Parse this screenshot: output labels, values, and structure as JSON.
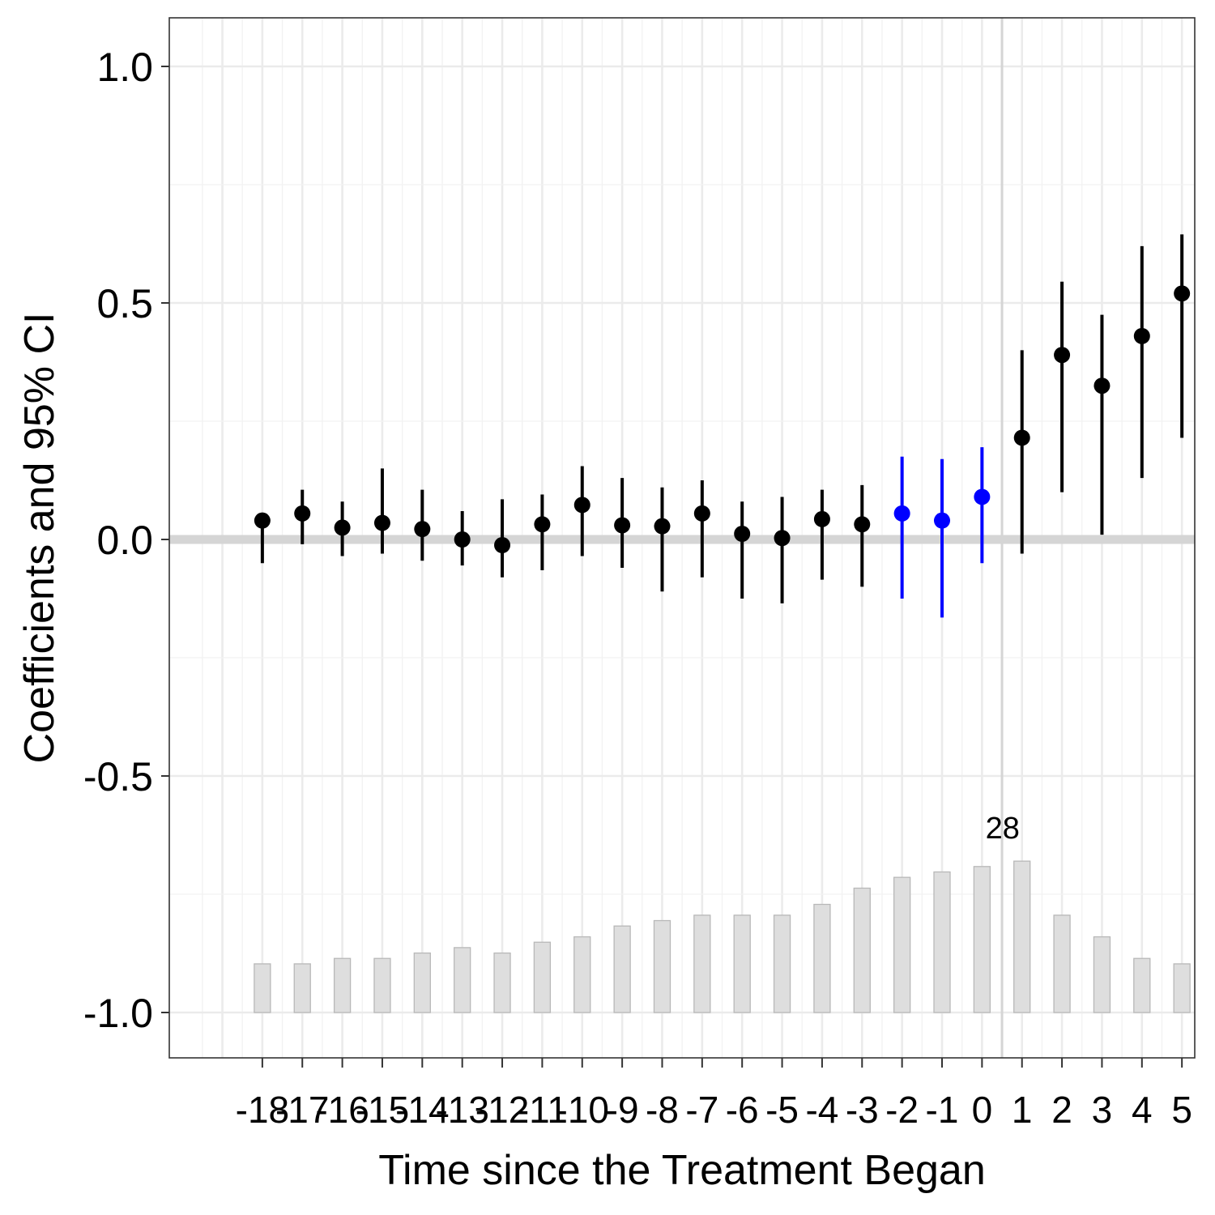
{
  "chart_data": {
    "type": "scatter",
    "title": "",
    "xlabel": "Time since the Treatment Began",
    "ylabel": "Coefficients and 95% CI",
    "ylim": [
      -1.1,
      1.1
    ],
    "yticks": [
      "1.0",
      "0.5",
      "0.0",
      "-0.5",
      "-1.0"
    ],
    "xticks": [
      "-18",
      "-17",
      "-16",
      "-15",
      "-14",
      "-13",
      "-12",
      "-11",
      "-10",
      "-9",
      "-8",
      "-7",
      "-6",
      "-5",
      "-4",
      "-3",
      "-2",
      "-1",
      "0",
      "1",
      "2",
      "3",
      "4",
      "5"
    ],
    "grid": true,
    "reference_lines": {
      "horizontal_y": 0,
      "vertical_x": 0.5
    },
    "colors": {
      "point": "#000000",
      "highlight": "#0000ff",
      "reference": "#d5d5d5",
      "bar": "#dedede"
    },
    "points": [
      {
        "x": -18,
        "y": 0.04,
        "lo": -0.05,
        "hi": 0.04,
        "highlight": false
      },
      {
        "x": -17,
        "y": 0.055,
        "lo": -0.01,
        "hi": 0.105,
        "highlight": false
      },
      {
        "x": -16,
        "y": 0.025,
        "lo": -0.035,
        "hi": 0.08,
        "highlight": false
      },
      {
        "x": -15,
        "y": 0.035,
        "lo": -0.03,
        "hi": 0.15,
        "highlight": false
      },
      {
        "x": -14,
        "y": 0.022,
        "lo": -0.045,
        "hi": 0.105,
        "highlight": false
      },
      {
        "x": -13,
        "y": 0.0,
        "lo": -0.055,
        "hi": 0.06,
        "highlight": false
      },
      {
        "x": -12,
        "y": -0.012,
        "lo": -0.08,
        "hi": 0.085,
        "highlight": false
      },
      {
        "x": -11,
        "y": 0.032,
        "lo": -0.065,
        "hi": 0.095,
        "highlight": false
      },
      {
        "x": -10,
        "y": 0.073,
        "lo": -0.035,
        "hi": 0.155,
        "highlight": false
      },
      {
        "x": -9,
        "y": 0.03,
        "lo": -0.06,
        "hi": 0.13,
        "highlight": false
      },
      {
        "x": -8,
        "y": 0.028,
        "lo": -0.11,
        "hi": 0.11,
        "highlight": false
      },
      {
        "x": -7,
        "y": 0.055,
        "lo": -0.08,
        "hi": 0.125,
        "highlight": false
      },
      {
        "x": -6,
        "y": 0.012,
        "lo": -0.125,
        "hi": 0.08,
        "highlight": false
      },
      {
        "x": -5,
        "y": 0.003,
        "lo": -0.135,
        "hi": 0.09,
        "highlight": false
      },
      {
        "x": -4,
        "y": 0.043,
        "lo": -0.085,
        "hi": 0.105,
        "highlight": false
      },
      {
        "x": -3,
        "y": 0.032,
        "lo": -0.1,
        "hi": 0.115,
        "highlight": false
      },
      {
        "x": -2,
        "y": 0.055,
        "lo": -0.125,
        "hi": 0.175,
        "highlight": true
      },
      {
        "x": -1,
        "y": 0.04,
        "lo": -0.165,
        "hi": 0.17,
        "highlight": true
      },
      {
        "x": 0,
        "y": 0.09,
        "lo": -0.05,
        "hi": 0.195,
        "highlight": true
      },
      {
        "x": 1,
        "y": 0.215,
        "lo": -0.03,
        "hi": 0.4,
        "highlight": false
      },
      {
        "x": 2,
        "y": 0.39,
        "lo": 0.1,
        "hi": 0.545,
        "highlight": false
      },
      {
        "x": 3,
        "y": 0.325,
        "lo": 0.01,
        "hi": 0.475,
        "highlight": false
      },
      {
        "x": 4,
        "y": 0.43,
        "lo": 0.13,
        "hi": 0.62,
        "highlight": false
      },
      {
        "x": 5,
        "y": 0.52,
        "lo": 0.215,
        "hi": 0.645,
        "highlight": false
      }
    ],
    "bars": {
      "baseline": -1.0,
      "x": [
        -18,
        -17,
        -16,
        -15,
        -14,
        -13,
        -12,
        -11,
        -10,
        -9,
        -8,
        -7,
        -6,
        -5,
        -4,
        -3,
        -2,
        -1,
        0,
        1,
        2,
        3,
        4,
        5
      ],
      "values": [
        9,
        9,
        10,
        10,
        11,
        12,
        11,
        13,
        14,
        16,
        17,
        18,
        18,
        18,
        20,
        23,
        25,
        26,
        27,
        28,
        18,
        14,
        10,
        9
      ],
      "max_label": "28"
    }
  }
}
